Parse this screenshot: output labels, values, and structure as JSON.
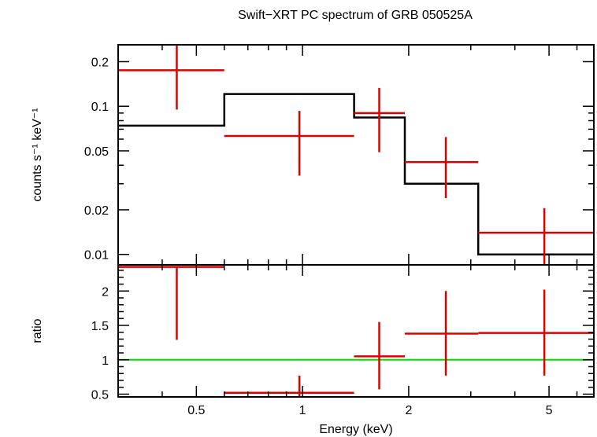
{
  "chart_data": [
    {
      "type": "step",
      "title": "Swift−XRT PC spectrum of GRB 050525A",
      "ylabel": "counts s⁻¹ keV⁻¹",
      "xscale": "log",
      "yscale": "log",
      "xlim": [
        0.3,
        6.7
      ],
      "ylim": [
        0.0085,
        0.26
      ],
      "yticks": [
        {
          "v": 0.2,
          "label": "0.2"
        },
        {
          "v": 0.1,
          "label": "0.1"
        },
        {
          "v": 0.05,
          "label": "0.05"
        },
        {
          "v": 0.02,
          "label": "0.02"
        },
        {
          "v": 0.01,
          "label": "0.01"
        }
      ],
      "data_series": {
        "color": "#dd0000",
        "points": [
          {
            "xlo": 0.3,
            "xhi": 0.6,
            "x": 0.44,
            "y": 0.175,
            "ylo": 0.095,
            "yhi": 0.26
          },
          {
            "xlo": 0.6,
            "xhi": 1.4,
            "x": 0.98,
            "y": 0.063,
            "ylo": 0.034,
            "yhi": 0.093
          },
          {
            "xlo": 1.4,
            "xhi": 1.95,
            "x": 1.65,
            "y": 0.09,
            "ylo": 0.049,
            "yhi": 0.133
          },
          {
            "xlo": 1.95,
            "xhi": 3.15,
            "x": 2.55,
            "y": 0.042,
            "ylo": 0.024,
            "yhi": 0.062
          },
          {
            "xlo": 3.15,
            "xhi": 6.7,
            "x": 4.85,
            "y": 0.014,
            "ylo": 0.0085,
            "yhi": 0.0205
          }
        ]
      },
      "model": {
        "color": "#000000",
        "steps": [
          {
            "xlo": 0.3,
            "xhi": 0.6,
            "y": 0.074
          },
          {
            "xlo": 0.6,
            "xhi": 1.4,
            "y": 0.121
          },
          {
            "xlo": 1.4,
            "xhi": 1.95,
            "y": 0.084
          },
          {
            "xlo": 1.95,
            "xhi": 3.15,
            "y": 0.03
          },
          {
            "xlo": 3.15,
            "xhi": 6.7,
            "y": 0.01
          }
        ]
      }
    },
    {
      "type": "scatter",
      "xlabel": "Energy (keV)",
      "ylabel": "ratio",
      "xscale": "log",
      "xlim": [
        0.3,
        6.7
      ],
      "ylim": [
        0.46,
        2.38
      ],
      "xticks": [
        {
          "v": 0.5,
          "label": "0.5"
        },
        {
          "v": 1,
          "label": "1"
        },
        {
          "v": 2,
          "label": "2"
        },
        {
          "v": 5,
          "label": "5"
        }
      ],
      "yticks": [
        {
          "v": 2,
          "label": "2"
        },
        {
          "v": 1.5,
          "label": "1.5"
        },
        {
          "v": 1,
          "label": "1"
        },
        {
          "v": 0.5,
          "label": "0.5"
        }
      ],
      "reference_line": {
        "y": 1,
        "color": "#00dd00"
      },
      "data_series": {
        "color": "#dd0000",
        "points": [
          {
            "xlo": 0.3,
            "xhi": 0.6,
            "x": 0.44,
            "y": 2.35,
            "ylo": 1.29,
            "yhi": 2.38
          },
          {
            "xlo": 0.6,
            "xhi": 1.4,
            "x": 0.98,
            "y": 0.52,
            "ylo": 0.46,
            "yhi": 0.77
          },
          {
            "xlo": 1.4,
            "xhi": 1.95,
            "x": 1.65,
            "y": 1.05,
            "ylo": 0.57,
            "yhi": 1.55
          },
          {
            "xlo": 1.95,
            "xhi": 3.15,
            "x": 2.55,
            "y": 1.38,
            "ylo": 0.77,
            "yhi": 2.0
          },
          {
            "xlo": 3.15,
            "xhi": 6.7,
            "x": 4.85,
            "y": 1.39,
            "ylo": 0.77,
            "yhi": 2.02
          }
        ]
      }
    }
  ]
}
